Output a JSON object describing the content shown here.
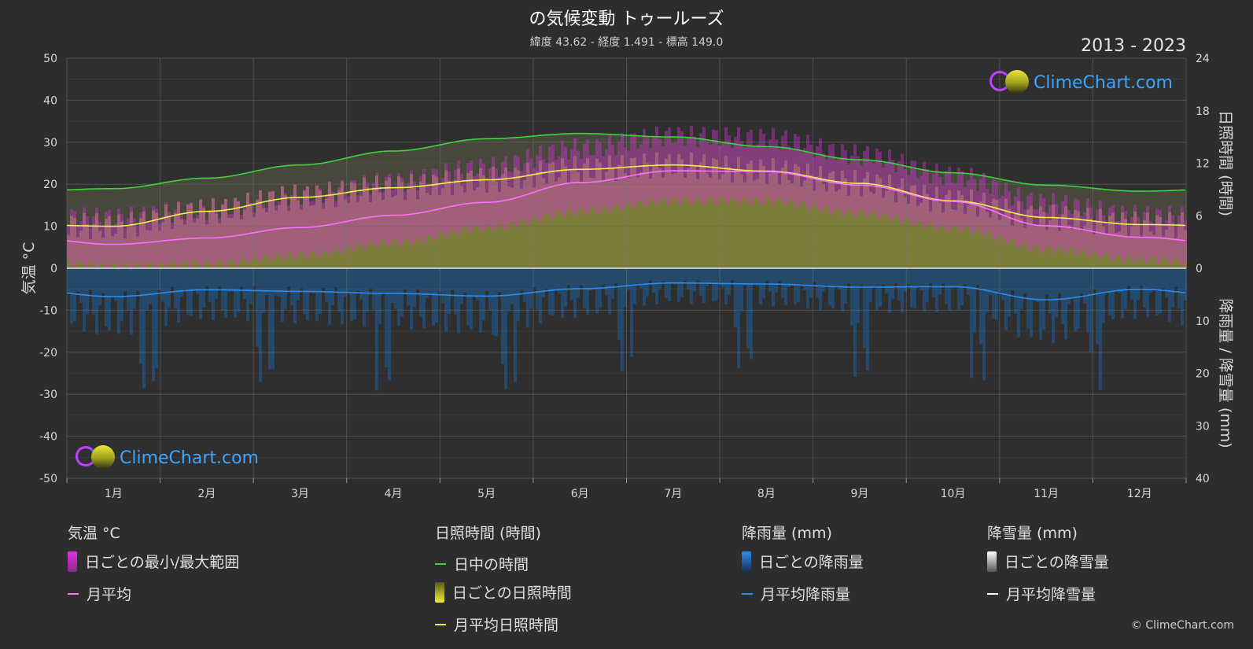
{
  "header": {
    "title": "の気候変動 トゥールーズ",
    "subtitle": "緯度 43.62 - 経度 1.491 - 標高 149.0",
    "years": "2013 - 2023"
  },
  "logo_text": "ClimeChart.com",
  "copyright": "© ClimeChart.com",
  "colors": {
    "daylight": "#3ed43e",
    "sunshine_line": "#f0f050",
    "temp_line": "#ff70ff",
    "rain_line": "#2a8ef0",
    "snow_line": "#ffffff",
    "temp_range": "#e030e0",
    "sunshine_fill": "#a8a83a",
    "rain_fill": "#1b5f9a"
  },
  "chart_data": {
    "type": "line",
    "x_categories": [
      "1月",
      "2月",
      "3月",
      "4月",
      "5月",
      "6月",
      "7月",
      "8月",
      "9月",
      "10月",
      "11月",
      "12月"
    ],
    "y_left": {
      "label": "気温 °C",
      "range": [
        -50,
        50
      ],
      "ticks": [
        "50",
        "40",
        "30",
        "20",
        "10",
        "0",
        "-10",
        "-20",
        "-30",
        "-40",
        "-50"
      ]
    },
    "y_right_top": {
      "label": "日照時間 (時間)",
      "range": [
        0,
        24
      ],
      "ticks": [
        "24",
        "18",
        "12",
        "6",
        "0"
      ]
    },
    "y_right_bottom": {
      "label": "降雨量 / 降雪量 (mm)",
      "range": [
        0,
        40
      ],
      "ticks": [
        "10",
        "20",
        "30",
        "40"
      ]
    },
    "grid": true,
    "series": [
      {
        "name": "日中の時間",
        "axis": "sunshine_hours",
        "values": [
          9.1,
          10.3,
          11.8,
          13.4,
          14.8,
          15.4,
          15.0,
          13.9,
          12.4,
          10.9,
          9.5,
          8.8
        ]
      },
      {
        "name": "月平均日照時間",
        "axis": "sunshine_hours",
        "values": [
          4.8,
          6.5,
          8.1,
          9.2,
          10.1,
          11.3,
          11.8,
          11.1,
          9.7,
          7.7,
          5.8,
          5.0
        ]
      },
      {
        "name": "月平均",
        "axis": "temperature_c",
        "values": [
          5.7,
          7.2,
          9.7,
          12.6,
          15.7,
          20.4,
          23.2,
          23.0,
          19.8,
          15.9,
          10.1,
          7.4
        ]
      },
      {
        "name": "月平均降雨量",
        "axis": "precip_mm",
        "values": [
          5.4,
          4.1,
          4.4,
          4.8,
          5.3,
          3.9,
          2.8,
          3.0,
          3.6,
          3.5,
          6.0,
          4.0
        ]
      },
      {
        "name": "月平均降雪量",
        "axis": "precip_mm",
        "values": [
          0,
          0,
          0,
          0,
          0,
          0,
          0,
          0,
          0,
          0,
          0,
          0
        ]
      }
    ],
    "daily_temp_range": {
      "min": [
        1.5,
        2.0,
        4.0,
        7.0,
        10.5,
        14.5,
        17.0,
        17.0,
        14.0,
        10.5,
        5.5,
        3.0
      ],
      "max": [
        11.0,
        13.0,
        16.5,
        19.5,
        23.0,
        27.5,
        30.5,
        30.0,
        26.0,
        21.0,
        14.5,
        11.5
      ]
    }
  },
  "legend": {
    "temp": {
      "head": "気温 °C",
      "range": "日ごとの最小/最大範囲",
      "avg": "月平均"
    },
    "sun": {
      "head": "日照時間 (時間)",
      "daylight": "日中の時間",
      "daily": "日ごとの日照時間",
      "avg": "月平均日照時間"
    },
    "rain": {
      "head": "降雨量 (mm)",
      "daily": "日ごとの降雨量",
      "avg": "月平均降雨量"
    },
    "snow": {
      "head": "降雪量 (mm)",
      "daily": "日ごとの降雪量",
      "avg": "月平均降雪量"
    }
  }
}
